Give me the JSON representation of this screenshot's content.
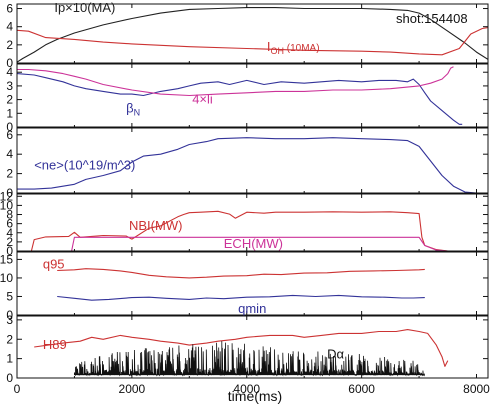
{
  "chart_data": {
    "type": "line",
    "shot_label": "shot:154408",
    "xlabel": "time(ms)",
    "xlim": [
      0,
      8200
    ],
    "x_ticks": [
      0,
      2000,
      4000,
      6000,
      8000
    ],
    "grid": false,
    "panels": [
      {
        "ylim": [
          0,
          6.5
        ],
        "y_ticks": [
          0,
          2,
          4,
          6
        ],
        "series": [
          {
            "name": "Ip×10(MA)",
            "color": "#222222",
            "x": [
              0,
              100,
              300,
              500,
              700,
              1000,
              1500,
              2000,
              2500,
              3000,
              3500,
              4000,
              4500,
              5000,
              5500,
              6000,
              6500,
              6800,
              7000,
              7200,
              7500,
              7800,
              8000,
              8200
            ],
            "y": [
              0.1,
              0.5,
              1.2,
              2.0,
              2.6,
              3.3,
              4.2,
              4.9,
              5.5,
              5.9,
              6.0,
              6.1,
              6.1,
              6.0,
              6.0,
              6.0,
              5.9,
              5.8,
              5.5,
              4.8,
              3.5,
              2.2,
              1.2,
              0.4
            ]
          },
          {
            "name": "I_OH (10MA)",
            "color": "#cc3333",
            "x": [
              0,
              200,
              500,
              1000,
              1500,
              2000,
              3000,
              4000,
              5000,
              6000,
              6500,
              7000,
              7400,
              7700,
              7900,
              8100,
              8200
            ],
            "y": [
              3.6,
              3.5,
              2.8,
              2.6,
              2.3,
              2.1,
              1.8,
              1.6,
              1.4,
              1.3,
              1.2,
              1.0,
              0.9,
              1.6,
              3.2,
              3.8,
              3.9
            ]
          }
        ],
        "labels": [
          {
            "text": "Ip×10(MA)",
            "color": "#222222",
            "x": 650,
            "y": 5.6
          },
          {
            "text": "I",
            "sub": "OH",
            "tail": " (10MA)",
            "color": "#cc3333",
            "x": 4350,
            "y": 1.3
          }
        ]
      },
      {
        "ylim": [
          0,
          4.6
        ],
        "y_ticks": [
          0,
          1,
          2,
          3,
          4
        ],
        "series": [
          {
            "name": "βN",
            "color": "#333399",
            "x": [
              0,
              300,
              500,
              800,
              1000,
              1200,
              1500,
              1800,
              2000,
              2200,
              2500,
              2800,
              3000,
              3200,
              3500,
              3700,
              4000,
              4300,
              4600,
              5000,
              5300,
              5600,
              6000,
              6300,
              6600,
              6800,
              6900,
              7000,
              7100,
              7200,
              7400,
              7600,
              7700,
              7750
            ],
            "y": [
              3.9,
              3.8,
              3.6,
              3.3,
              3.0,
              2.8,
              2.6,
              2.4,
              2.4,
              2.3,
              2.6,
              2.8,
              3.0,
              3.2,
              3.3,
              3.1,
              3.4,
              3.1,
              3.3,
              3.2,
              3.3,
              3.4,
              3.3,
              3.4,
              3.4,
              3.3,
              3.5,
              3.1,
              2.5,
              1.9,
              1.2,
              0.5,
              0.2,
              0.2
            ]
          },
          {
            "name": "4×li",
            "color": "#cc3399",
            "x": [
              0,
              200,
              500,
              800,
              1000,
              1200,
              1500,
              2000,
              2500,
              3000,
              3500,
              4000,
              4500,
              5000,
              5500,
              6000,
              6500,
              7000,
              7200,
              7400,
              7500,
              7550,
              7600
            ],
            "y": [
              4.2,
              4.2,
              4.1,
              3.9,
              3.7,
              3.5,
              3.1,
              2.7,
              2.4,
              2.3,
              2.4,
              2.5,
              2.6,
              2.6,
              2.7,
              2.7,
              2.8,
              3.0,
              3.2,
              3.5,
              3.9,
              4.3,
              4.4
            ]
          }
        ],
        "labels": [
          {
            "text": "β",
            "sub": "N",
            "color": "#333399",
            "x": 1900,
            "y": 1.05
          },
          {
            "text": "4×li",
            "color": "#cc3399",
            "x": 3050,
            "y": 1.7
          }
        ]
      },
      {
        "ylim": [
          0,
          6.7
        ],
        "y_ticks": [
          0,
          2,
          4,
          6
        ],
        "series": [
          {
            "name": "<ne>(10^19/m^3)",
            "color": "#333399",
            "x": [
              0,
              300,
              600,
              1000,
              1200,
              1500,
              1800,
              2000,
              2200,
              2500,
              2800,
              3000,
              3300,
              3500,
              4000,
              4500,
              5000,
              5500,
              6000,
              6500,
              6800,
              7000,
              7200,
              7400,
              7600,
              7800,
              8000
            ],
            "y": [
              0.4,
              0.4,
              0.5,
              0.9,
              1.4,
              1.8,
              2.3,
              3.2,
              3.8,
              4.0,
              4.5,
              5.0,
              5.3,
              5.6,
              5.7,
              5.6,
              5.6,
              5.7,
              5.6,
              5.5,
              5.4,
              4.8,
              3.3,
              1.8,
              0.7,
              0.1,
              0.0
            ]
          }
        ],
        "labels": [
          {
            "text": "<ne>(10^19/m^3)",
            "color": "#333399",
            "x": 300,
            "y": 2.4
          }
        ]
      },
      {
        "ylim": [
          0,
          12.5
        ],
        "y_ticks": [
          0,
          2,
          4,
          6,
          8,
          10,
          12
        ],
        "series": [
          {
            "name": "NBI(MW)",
            "color": "#cc3333",
            "x": [
              0,
              250,
              300,
              500,
              900,
              1000,
              1100,
              1300,
              1500,
              1900,
              2000,
              2300,
              2500,
              2800,
              2900,
              3000,
              3200,
              3500,
              3700,
              3800,
              4000,
              4300,
              4500,
              5000,
              5500,
              6000,
              6500,
              6800,
              7000,
              7050,
              7100,
              7300,
              7500
            ],
            "y": [
              0,
              0,
              2.5,
              3.1,
              3.2,
              4.1,
              3.0,
              3.2,
              3.4,
              3.3,
              2.6,
              5.0,
              5.5,
              7.5,
              8.0,
              8.4,
              8.5,
              8.7,
              8.1,
              7.2,
              8.5,
              8.3,
              8.5,
              8.5,
              8.6,
              8.5,
              8.6,
              8.4,
              8.2,
              3.0,
              1.2,
              0.3,
              0
            ]
          },
          {
            "name": "ECH(MW)",
            "color": "#cc3399",
            "x": [
              0,
              950,
              1000,
              1500,
              2000,
              3000,
              4000,
              5000,
              5500,
              6000,
              6900,
              7000,
              7100,
              7300,
              7500
            ],
            "y": [
              0,
              0,
              3.0,
              3.0,
              3.0,
              3.0,
              3.0,
              3.0,
              3.0,
              3.0,
              3.0,
              3.0,
              1.2,
              0.2,
              0
            ]
          }
        ],
        "labels": [
          {
            "text": "NBI(MW)",
            "color": "#cc3333",
            "x": 1950,
            "y": 4.6
          },
          {
            "text": "ECH(MW)",
            "color": "#cc3399",
            "x": 3600,
            "y": 0.7
          }
        ]
      },
      {
        "ylim": [
          0,
          17
        ],
        "y_ticks": [
          0,
          5,
          10,
          15
        ],
        "series": [
          {
            "name": "q95",
            "color": "#cc3333",
            "x": [
              700,
              1000,
              1200,
              1500,
              1800,
              2000,
              2300,
              2600,
              3000,
              3300,
              3600,
              4000,
              4300,
              4600,
              5000,
              5400,
              5800,
              6200,
              6600,
              7000,
              7100
            ],
            "y": [
              12.0,
              12.2,
              12.5,
              12.3,
              11.9,
              11.5,
              10.7,
              10.3,
              10.0,
              10.2,
              10.5,
              10.6,
              11.0,
              10.9,
              11.3,
              11.4,
              11.8,
              11.9,
              12.0,
              12.2,
              12.3
            ]
          },
          {
            "name": "qmin",
            "color": "#333399",
            "x": [
              700,
              1000,
              1300,
              1600,
              2000,
              2300,
              2600,
              3000,
              3300,
              3600,
              4000,
              4400,
              4800,
              5200,
              5600,
              6000,
              6400,
              6700,
              6900,
              7100
            ],
            "y": [
              5.0,
              4.5,
              4.0,
              4.2,
              4.7,
              4.8,
              4.5,
              4.2,
              4.6,
              4.4,
              4.8,
              4.9,
              5.3,
              5.0,
              5.3,
              4.9,
              4.8,
              4.6,
              4.6,
              4.7
            ]
          }
        ],
        "labels": [
          {
            "text": "q95",
            "color": "#cc3333",
            "x": 450,
            "y": 12.6
          },
          {
            "text": "qmin",
            "color": "#333399",
            "x": 3850,
            "y": 0.5
          }
        ]
      },
      {
        "ylim": [
          0,
          3.2
        ],
        "y_ticks": [
          0,
          1,
          2,
          3
        ],
        "series": [
          {
            "name": "H89",
            "color": "#cc3333",
            "x": [
              300,
              800,
              1100,
              1300,
              1500,
              1800,
              2000,
              2300,
              2500,
              2800,
              3000,
              3300,
              3500,
              3800,
              4000,
              4400,
              4800,
              5000,
              5300,
              5600,
              6000,
              6300,
              6600,
              6800,
              7000,
              7150,
              7300,
              7400,
              7450,
              7500
            ],
            "y": [
              1.6,
              1.8,
              1.9,
              2.1,
              2.0,
              2.2,
              2.1,
              2.0,
              1.9,
              1.8,
              1.7,
              1.8,
              1.9,
              2.0,
              2.1,
              2.2,
              2.2,
              2.1,
              2.2,
              2.3,
              2.3,
              2.4,
              2.4,
              2.5,
              2.4,
              2.3,
              1.7,
              1.1,
              0.6,
              0.9
            ]
          },
          {
            "name": "Dα",
            "color": "#111111",
            "style": "bursts",
            "start": 1000,
            "end": 7100,
            "baseline": 0.15,
            "envelope_x": [
              1000,
              1500,
              2000,
              2500,
              3000,
              3500,
              4000,
              4500,
              5000,
              5500,
              6000,
              6500,
              7000,
              7100
            ],
            "envelope_y": [
              0.6,
              1.1,
              1.3,
              1.5,
              1.6,
              1.8,
              1.6,
              1.5,
              1.3,
              1.2,
              1.1,
              0.9,
              0.7,
              0.3
            ]
          }
        ],
        "labels": [
          {
            "text": "H89",
            "color": "#cc3333",
            "x": 450,
            "y": 1.5
          },
          {
            "text": "Dα",
            "color": "#111111",
            "x": 5400,
            "y": 1.0
          }
        ]
      }
    ]
  }
}
